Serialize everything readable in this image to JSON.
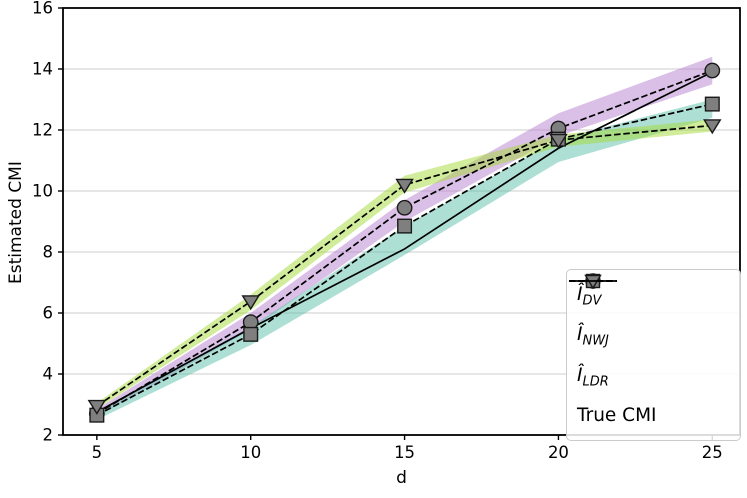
{
  "chart_data": {
    "type": "line",
    "title": "",
    "xlabel": "d",
    "ylabel": "Estimated CMI",
    "xlim": [
      3.9,
      25.9
    ],
    "ylim": [
      2,
      16
    ],
    "xticks": [
      5,
      10,
      15,
      20,
      25
    ],
    "yticks": [
      2,
      4,
      6,
      8,
      10,
      12,
      14,
      16
    ],
    "grid": "horizontal-only",
    "grid_color": "#cccccc",
    "legend_position": "inside center-right",
    "x": [
      5,
      10,
      15,
      20,
      25
    ],
    "series": [
      {
        "id": "i-dv",
        "legend_main": "Î",
        "legend_sub": "DV",
        "marker": "circle",
        "line_style": "dashed",
        "line_color": "#000000",
        "marker_fill": "#7f7f7f",
        "marker_edge": "#1a1a1a",
        "band_color": "#B67FD0",
        "values": [
          2.7,
          5.7,
          9.45,
          12.05,
          13.95
        ],
        "band_lower": [
          2.6,
          5.45,
          9.0,
          11.8,
          13.5
        ],
        "band_upper": [
          2.85,
          6.0,
          9.7,
          12.55,
          14.4
        ]
      },
      {
        "id": "i-nwj",
        "legend_main": "Î",
        "legend_sub": "NWJ",
        "marker": "square",
        "line_style": "dashed",
        "line_color": "#000000",
        "marker_fill": "#7f7f7f",
        "marker_edge": "#1a1a1a",
        "band_color": "#5BBFAA",
        "values": [
          2.65,
          5.3,
          8.85,
          11.7,
          12.85
        ],
        "band_lower": [
          2.5,
          4.95,
          7.9,
          10.95,
          12.4
        ],
        "band_upper": [
          2.78,
          5.55,
          8.85,
          11.7,
          13.0
        ]
      },
      {
        "id": "i-ldr",
        "legend_main": "Î",
        "legend_sub": "LDR",
        "marker": "triangle-down",
        "line_style": "dashed",
        "line_color": "#000000",
        "marker_fill": "#7f7f7f",
        "marker_edge": "#1a1a1a",
        "band_color": "#A4D935",
        "values": [
          2.95,
          6.38,
          10.2,
          11.67,
          12.15
        ],
        "band_lower": [
          2.85,
          6.1,
          9.95,
          11.45,
          11.95
        ],
        "band_upper": [
          3.05,
          6.6,
          10.5,
          11.85,
          12.35
        ]
      },
      {
        "id": "true-cmi",
        "legend_main": "True CMI",
        "legend_sub": "",
        "marker": "none",
        "line_style": "solid",
        "line_color": "#000000",
        "values": [
          2.75,
          5.5,
          8.1,
          11.4,
          13.9
        ]
      }
    ]
  }
}
